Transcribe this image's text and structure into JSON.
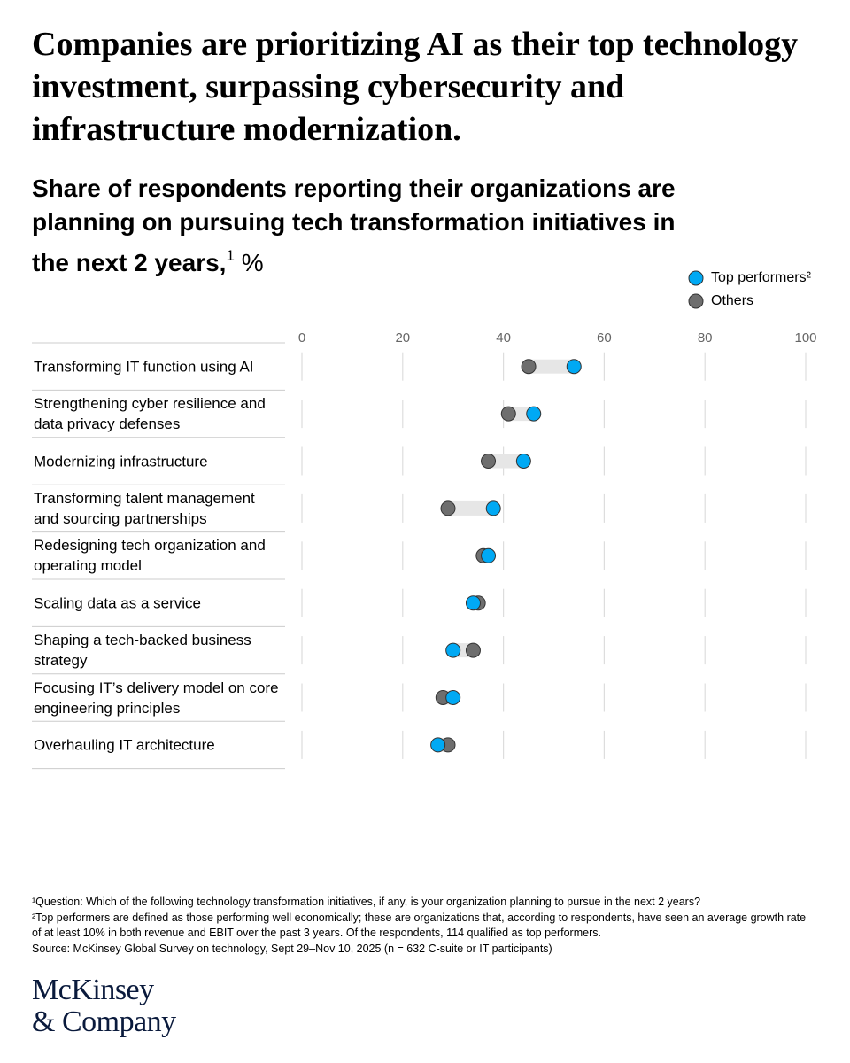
{
  "chart_data": {
    "type": "dumbbell",
    "title": "Companies are prioritizing AI as their top technology investment, surpassing cybersecurity and infrastructure modernization.",
    "subtitle": "Share of respondents reporting their organizations are planning on pursuing tech transformation initiatives in the next 2 years,",
    "subtitle_note": "1",
    "unit": "%",
    "categories": [
      "Transforming IT function using AI",
      "Strengthening cyber resilience and data privacy defenses",
      "Modernizing infrastructure",
      "Transforming talent management and sourcing partnerships",
      "Redesigning tech organization and operating model",
      "Scaling data as a service",
      "Shaping a tech-backed business strategy",
      "Focusing IT’s delivery model on core engineering principles",
      "Overhauling IT architecture"
    ],
    "series": [
      {
        "name": "Top performers²",
        "color": "#00a9f4",
        "values": [
          54,
          46,
          44,
          38,
          37,
          34,
          30,
          30,
          27
        ]
      },
      {
        "name": "Others",
        "color": "#6e6e6e",
        "values": [
          45,
          41,
          37,
          29,
          36,
          35,
          34,
          28,
          29
        ]
      }
    ],
    "connector_color": "#e6e6e6",
    "xlim": [
      0,
      100
    ],
    "xticks": [
      0,
      20,
      40,
      60,
      80,
      100
    ],
    "grid": true,
    "legend": "top-right",
    "notes": [
      "¹Question: Which of the following technology transformation initiatives, if any, is your organization planning to pursue in the next 2 years?",
      "²Top performers are defined as those performing well economically; these are organizations that, according to respondents, have seen an average growth rate of at least 10% in both revenue and EBIT over the past 3 years. Of the respondents, 114 qualified as top performers.",
      "Source: McKinsey Global Survey on technology, Sept 29–Nov 10, 2025 (n = 632 C-suite or IT participants)"
    ],
    "logo": [
      "McKinsey",
      "& Company"
    ]
  }
}
